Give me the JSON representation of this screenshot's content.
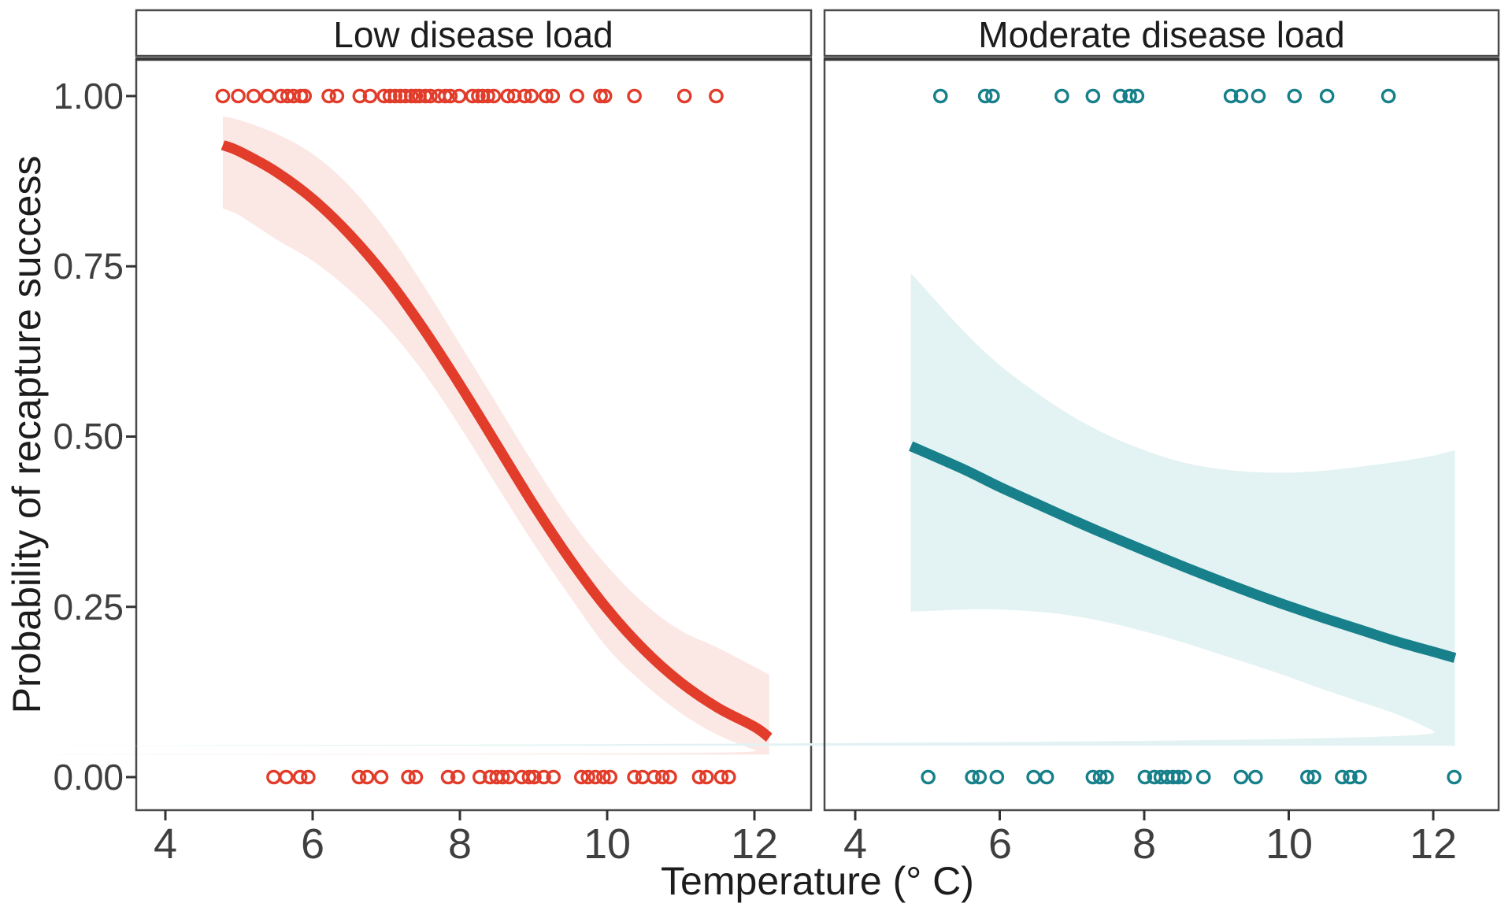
{
  "chart_data": {
    "type": "line",
    "title": "",
    "xlabel": "Temperature (° C)",
    "ylabel": "Probability of recapture success",
    "grid": "off",
    "legend": "none (faceted, colors by panel)",
    "x_tick_values": [
      4,
      6,
      8,
      10,
      12
    ],
    "x_tick_labels": [
      "4",
      "6",
      "8",
      "10",
      "12"
    ],
    "y_tick_values": [
      1.0,
      0.75,
      0.5,
      0.25,
      0.0
    ],
    "y_tick_labels": [
      "1.00",
      "0.75",
      "0.50",
      "0.25",
      "0.00"
    ],
    "xlim": [
      3.6,
      12.8
    ],
    "ylim": [
      -0.05,
      1.055
    ],
    "frame_color": "#4a4a4a",
    "tick_color": "#333333",
    "panels": [
      {
        "label": "Low disease load",
        "color": "#E23C2B",
        "ribbon_color": "#FBE8E5",
        "fit": [
          {
            "t": 4.78,
            "p": 0.928,
            "lo": 0.835,
            "hi": 0.97
          },
          {
            "t": 5.0,
            "p": 0.919,
            "lo": 0.825,
            "hi": 0.965
          },
          {
            "t": 5.5,
            "p": 0.889,
            "lo": 0.79,
            "hi": 0.945
          },
          {
            "t": 6.0,
            "p": 0.849,
            "lo": 0.758,
            "hi": 0.915
          },
          {
            "t": 6.5,
            "p": 0.797,
            "lo": 0.715,
            "hi": 0.868
          },
          {
            "t": 7.0,
            "p": 0.734,
            "lo": 0.662,
            "hi": 0.803
          },
          {
            "t": 7.5,
            "p": 0.659,
            "lo": 0.595,
            "hi": 0.723
          },
          {
            "t": 8.0,
            "p": 0.576,
            "lo": 0.515,
            "hi": 0.636
          },
          {
            "t": 8.5,
            "p": 0.488,
            "lo": 0.428,
            "hi": 0.548
          },
          {
            "t": 9.0,
            "p": 0.4,
            "lo": 0.343,
            "hi": 0.46
          },
          {
            "t": 9.5,
            "p": 0.319,
            "lo": 0.264,
            "hi": 0.378
          },
          {
            "t": 10.0,
            "p": 0.247,
            "lo": 0.19,
            "hi": 0.31
          },
          {
            "t": 10.5,
            "p": 0.187,
            "lo": 0.137,
            "hi": 0.255
          },
          {
            "t": 11.0,
            "p": 0.139,
            "lo": 0.094,
            "hi": 0.215
          },
          {
            "t": 11.5,
            "p": 0.102,
            "lo": 0.062,
            "hi": 0.19
          },
          {
            "t": 12.0,
            "p": 0.074,
            "lo": 0.04,
            "hi": 0.162
          },
          {
            "t": 12.2,
            "p": 0.058,
            "lo": 0.033,
            "hi": 0.15
          }
        ],
        "rug_top_p": 1.0,
        "rug_bottom_p": 0.0,
        "rug_top_t": [
          4.78,
          4.99,
          5.2,
          5.39,
          5.57,
          5.66,
          5.74,
          5.84,
          5.89,
          6.22,
          6.33,
          6.64,
          6.78,
          6.97,
          7.05,
          7.12,
          7.19,
          7.26,
          7.34,
          7.4,
          7.45,
          7.53,
          7.6,
          7.71,
          7.8,
          7.87,
          7.99,
          8.17,
          8.25,
          8.31,
          8.38,
          8.46,
          8.65,
          8.74,
          8.88,
          8.97,
          9.17,
          9.26,
          9.59,
          9.91,
          9.97,
          10.37,
          11.05,
          11.48
        ],
        "rug_bottom_t": [
          5.47,
          5.64,
          5.83,
          5.94,
          6.63,
          6.74,
          6.93,
          7.3,
          7.4,
          7.84,
          7.97,
          8.27,
          8.41,
          8.5,
          8.58,
          8.67,
          8.84,
          8.94,
          9.01,
          9.14,
          9.27,
          9.65,
          9.74,
          9.84,
          9.95,
          10.04,
          10.37,
          10.48,
          10.64,
          10.75,
          10.85,
          11.25,
          11.35,
          11.55,
          11.65
        ]
      },
      {
        "label": "Moderate disease load",
        "color": "#17808A",
        "ribbon_color": "#E3F2F3",
        "fit": [
          {
            "t": 4.77,
            "p": 0.486,
            "lo": 0.243,
            "hi": 0.74
          },
          {
            "t": 5.5,
            "p": 0.452,
            "lo": 0.246,
            "hi": 0.655
          },
          {
            "t": 6.0,
            "p": 0.426,
            "lo": 0.246,
            "hi": 0.605
          },
          {
            "t": 6.5,
            "p": 0.402,
            "lo": 0.243,
            "hi": 0.565
          },
          {
            "t": 7.0,
            "p": 0.378,
            "lo": 0.237,
            "hi": 0.53
          },
          {
            "t": 7.5,
            "p": 0.355,
            "lo": 0.227,
            "hi": 0.502
          },
          {
            "t": 8.0,
            "p": 0.333,
            "lo": 0.214,
            "hi": 0.48
          },
          {
            "t": 8.5,
            "p": 0.311,
            "lo": 0.199,
            "hi": 0.463
          },
          {
            "t": 9.0,
            "p": 0.29,
            "lo": 0.182,
            "hi": 0.453
          },
          {
            "t": 9.5,
            "p": 0.27,
            "lo": 0.165,
            "hi": 0.448
          },
          {
            "t": 10.0,
            "p": 0.251,
            "lo": 0.147,
            "hi": 0.447
          },
          {
            "t": 10.5,
            "p": 0.233,
            "lo": 0.128,
            "hi": 0.45
          },
          {
            "t": 11.0,
            "p": 0.216,
            "lo": 0.11,
            "hi": 0.456
          },
          {
            "t": 11.5,
            "p": 0.199,
            "lo": 0.092,
            "hi": 0.463
          },
          {
            "t": 12.0,
            "p": 0.184,
            "lo": 0.068,
            "hi": 0.472
          },
          {
            "t": 12.3,
            "p": 0.175,
            "lo": 0.046,
            "hi": 0.48
          }
        ],
        "rug_top_p": 1.0,
        "rug_bottom_p": 0.0,
        "rug_top_t": [
          5.18,
          5.8,
          5.9,
          6.86,
          7.29,
          7.67,
          7.8,
          7.9,
          9.2,
          9.34,
          9.58,
          10.08,
          10.53,
          11.38
        ],
        "rug_bottom_t": [
          5.01,
          5.62,
          5.72,
          5.96,
          6.47,
          6.65,
          7.29,
          7.39,
          7.48,
          8.01,
          8.14,
          8.23,
          8.32,
          8.4,
          8.47,
          8.56,
          8.82,
          9.34,
          9.54,
          10.26,
          10.35,
          10.74,
          10.85,
          10.98,
          12.29
        ]
      }
    ]
  }
}
